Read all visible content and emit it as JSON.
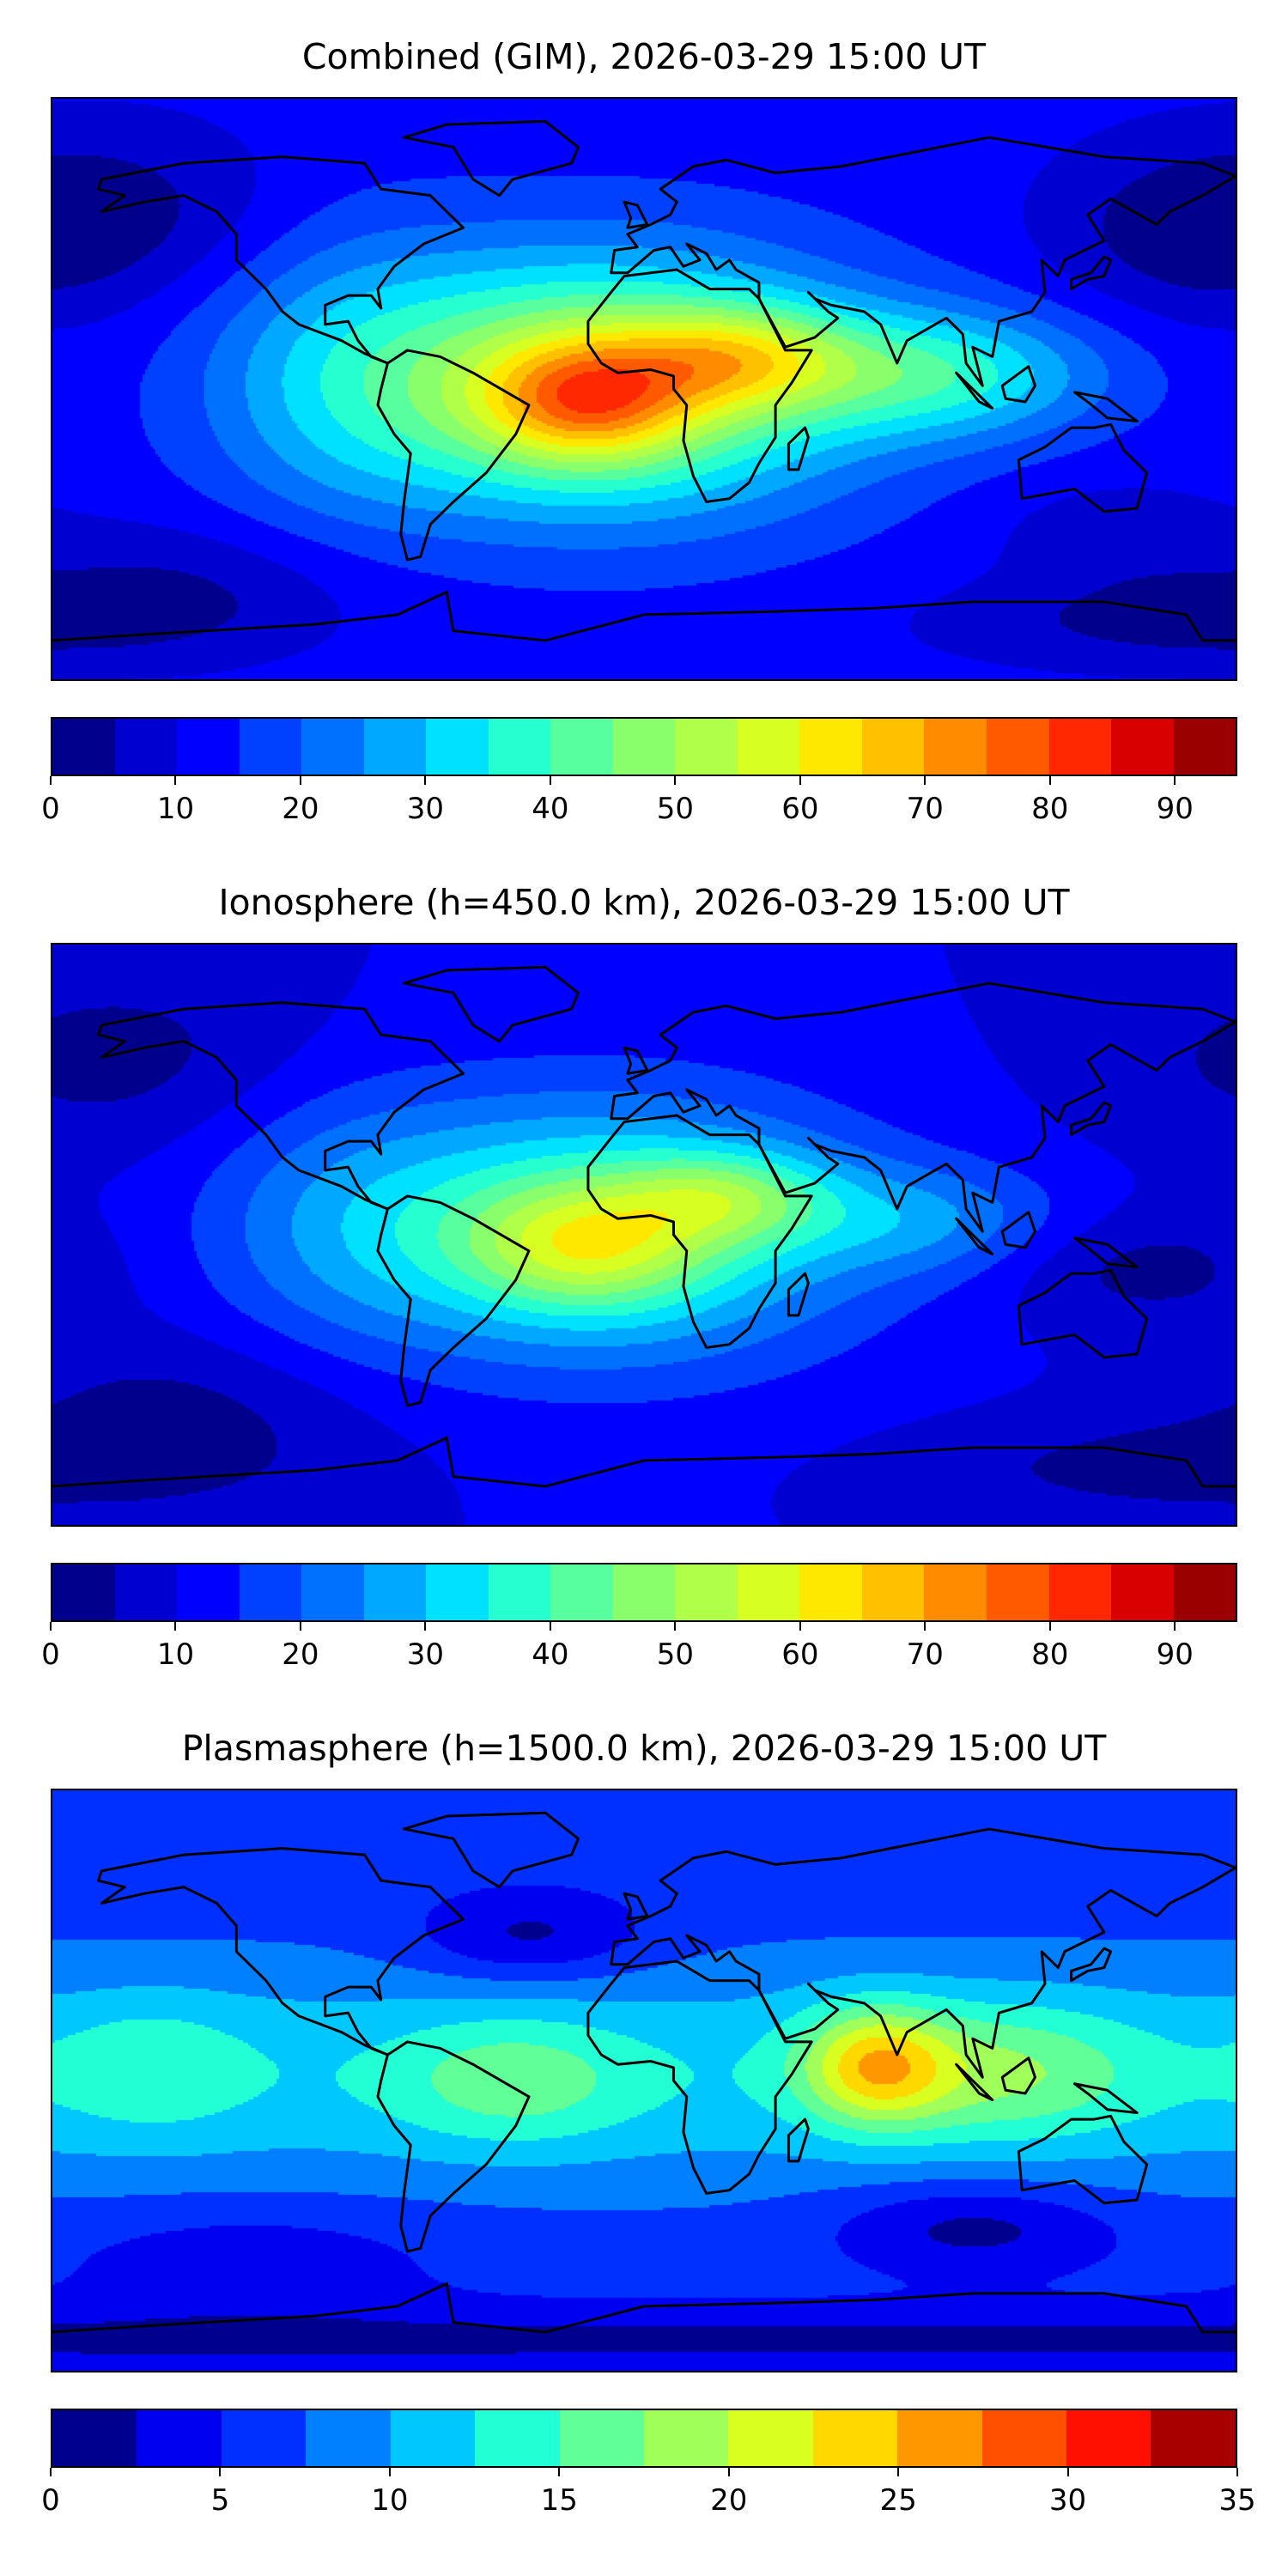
{
  "chart_data": [
    {
      "type": "heatmap",
      "title": "Combined (GIM), 2026-03-29 15:00 UT",
      "projection": "equirectangular, world, with coastlines",
      "colorbar": {
        "levels": [
          0,
          5,
          10,
          15,
          20,
          25,
          30,
          35,
          40,
          45,
          50,
          55,
          60,
          65,
          70,
          75,
          80,
          85,
          90,
          95
        ],
        "tick_labels": [
          "0",
          "10",
          "20",
          "30",
          "40",
          "50",
          "60",
          "70",
          "80",
          "90"
        ],
        "ticks": [
          0,
          10,
          20,
          30,
          40,
          50,
          60,
          70,
          80,
          90
        ],
        "range": [
          0,
          95
        ],
        "colors": [
          "#00008c",
          "#0000d0",
          "#0000ff",
          "#0040ff",
          "#0070ff",
          "#00a8ff",
          "#00e0ff",
          "#26ffd0",
          "#58ff9e",
          "#8aff6c",
          "#b0ff48",
          "#d8ff22",
          "#ffe800",
          "#ffc000",
          "#ff8c00",
          "#ff5a00",
          "#ff2800",
          "#d80000",
          "#9a0000"
        ]
      },
      "features": {
        "max_value_approx": 88,
        "max_location": "tropical South Atlantic / Brazil coast (~20W, 0N)",
        "background_value_approx": 12
      }
    },
    {
      "type": "heatmap",
      "title": "Ionosphere  (h=450.0 km), 2026-03-29 15:00 UT",
      "projection": "equirectangular, world, with coastlines",
      "colorbar": {
        "levels": [
          0,
          5,
          10,
          15,
          20,
          25,
          30,
          35,
          40,
          45,
          50,
          55,
          60,
          65,
          70,
          75,
          80,
          85,
          90,
          95
        ],
        "tick_labels": [
          "0",
          "10",
          "20",
          "30",
          "40",
          "50",
          "60",
          "70",
          "80",
          "90"
        ],
        "ticks": [
          0,
          10,
          20,
          30,
          40,
          50,
          60,
          70,
          80,
          90
        ],
        "range": [
          0,
          95
        ],
        "colors": [
          "#00008c",
          "#0000d0",
          "#0000ff",
          "#0040ff",
          "#0070ff",
          "#00a8ff",
          "#00e0ff",
          "#26ffd0",
          "#58ff9e",
          "#8aff6c",
          "#b0ff48",
          "#d8ff22",
          "#ffe800",
          "#ffc000",
          "#ff8c00",
          "#ff5a00",
          "#ff2800",
          "#d80000",
          "#9a0000"
        ]
      },
      "features": {
        "max_value_approx": 70,
        "max_location": "tropical Atlantic / Central Africa",
        "background_value_approx": 10
      }
    },
    {
      "type": "heatmap",
      "title": "Plasmasphere (h=1500.0 km), 2026-03-29 15:00 UT",
      "projection": "equirectangular, world, with coastlines",
      "colorbar": {
        "levels": [
          0,
          2.5,
          5,
          7.5,
          10,
          12.5,
          15,
          17.5,
          20,
          22.5,
          25,
          27.5,
          30,
          32.5,
          35
        ],
        "tick_labels": [
          "0",
          "5",
          "10",
          "15",
          "20",
          "25",
          "30",
          "35"
        ],
        "ticks": [
          0,
          5,
          10,
          15,
          20,
          25,
          30,
          35
        ],
        "range": [
          0,
          35
        ],
        "colors": [
          "#00008f",
          "#0000f0",
          "#0030ff",
          "#0080ff",
          "#00c8ff",
          "#22ffd4",
          "#60ff98",
          "#a0ff58",
          "#d8ff20",
          "#ffd800",
          "#ff9800",
          "#ff5000",
          "#ff1000",
          "#a80000"
        ]
      },
      "features": {
        "max_value_approx": 24,
        "max_location": "Arabian Sea (~70E, 5N)",
        "background_value_approx": 6
      }
    }
  ]
}
